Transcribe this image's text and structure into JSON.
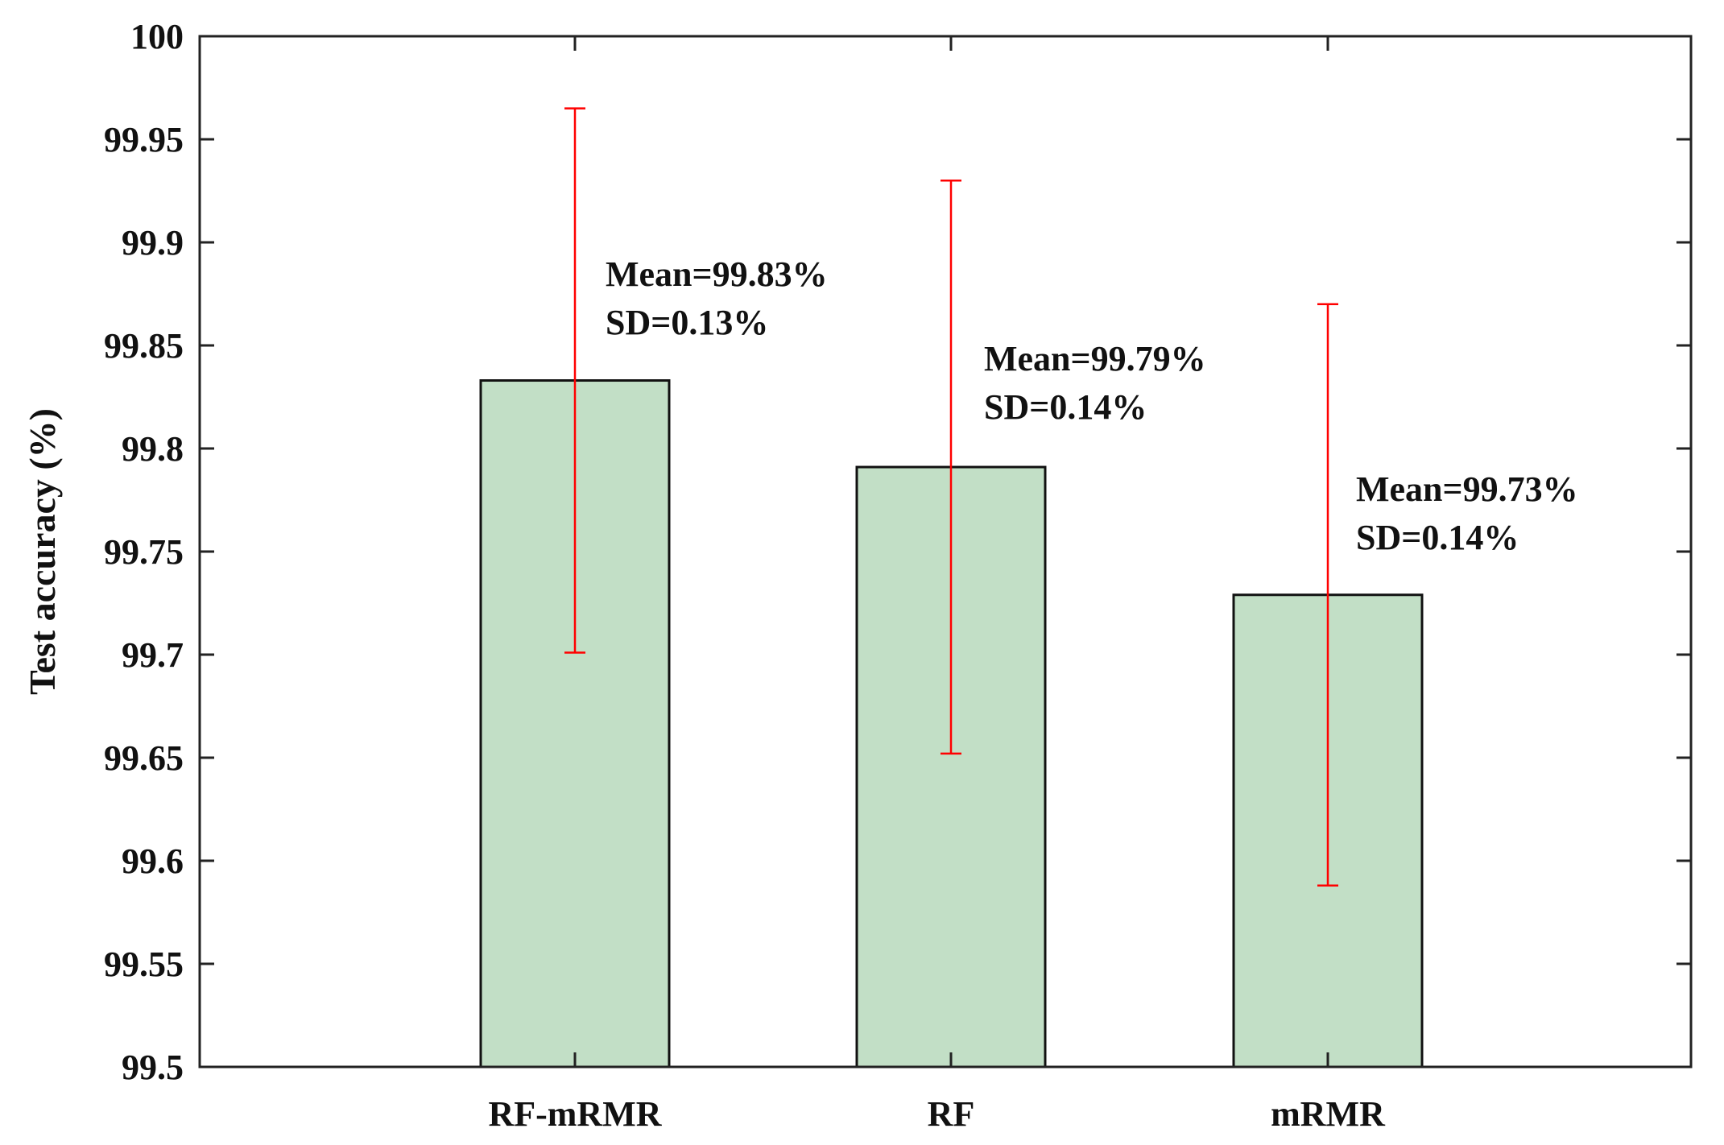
{
  "chart_data": {
    "type": "bar",
    "title": "",
    "xlabel": "",
    "ylabel": "Test accuracy (%)",
    "ylim": [
      99.5,
      100
    ],
    "yticks": [
      "99.5",
      "99.55",
      "99.6",
      "99.65",
      "99.7",
      "99.75",
      "99.8",
      "99.85",
      "99.9",
      "99.95",
      "100"
    ],
    "categories": [
      "RF-mRMR",
      "RF",
      "mRMR"
    ],
    "values": [
      99.833,
      99.791,
      99.729
    ],
    "errors": [
      0.132,
      0.139,
      0.141
    ],
    "annotations": [
      {
        "mean": "Mean=99.83%",
        "sd": "SD=0.13%"
      },
      {
        "mean": "Mean=99.79%",
        "sd": "SD=0.14%"
      },
      {
        "mean": "Mean=99.73%",
        "sd": "SD=0.14%"
      }
    ],
    "grid": false,
    "bar_color": "#c2dfc6",
    "error_color": "#ff0000"
  }
}
